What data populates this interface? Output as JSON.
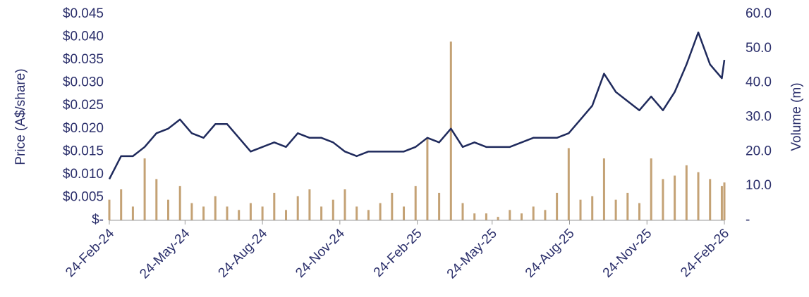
{
  "chart_data": {
    "type": "line-bar",
    "ylabel": "Price (A$/share)",
    "y2label": "Volume (m)",
    "x": [
      "2024-02-24",
      "2024-03-09",
      "2024-03-23",
      "2024-04-06",
      "2024-04-20",
      "2024-05-04",
      "2024-05-18",
      "2024-06-01",
      "2024-06-15",
      "2024-06-29",
      "2024-07-13",
      "2024-07-27",
      "2024-08-10",
      "2024-08-24",
      "2024-09-07",
      "2024-09-21",
      "2024-10-05",
      "2024-10-19",
      "2024-11-02",
      "2024-11-16",
      "2024-11-30",
      "2024-12-14",
      "2024-12-28",
      "2025-01-11",
      "2025-01-25",
      "2025-02-08",
      "2025-02-22",
      "2025-03-08",
      "2025-03-22",
      "2025-04-05",
      "2025-04-19",
      "2025-05-03",
      "2025-05-17",
      "2025-05-31",
      "2025-06-14",
      "2025-06-28",
      "2025-07-12",
      "2025-07-26",
      "2025-08-09",
      "2025-08-23",
      "2025-09-06",
      "2025-09-20",
      "2025-10-04",
      "2025-10-18",
      "2025-11-01",
      "2025-11-15",
      "2025-11-29",
      "2025-12-13",
      "2025-12-27",
      "2026-01-10",
      "2026-01-24",
      "2026-02-07",
      "2026-02-21",
      "2026-02-24"
    ],
    "series": [
      {
        "name": "Price",
        "color": "#1f2a5c",
        "axis": "y",
        "values": [
          0.009,
          0.014,
          0.014,
          0.016,
          0.019,
          0.02,
          0.022,
          0.019,
          0.018,
          0.021,
          0.021,
          0.018,
          0.015,
          0.016,
          0.017,
          0.016,
          0.019,
          0.018,
          0.018,
          0.017,
          0.015,
          0.014,
          0.015,
          0.015,
          0.015,
          0.015,
          0.016,
          0.018,
          0.017,
          0.02,
          0.016,
          0.017,
          0.016,
          0.016,
          0.016,
          0.017,
          0.018,
          0.018,
          0.018,
          0.019,
          0.022,
          0.025,
          0.032,
          0.028,
          0.026,
          0.024,
          0.027,
          0.024,
          0.028,
          0.034,
          0.041,
          0.034,
          0.031,
          0.035
        ]
      },
      {
        "name": "Volume",
        "color": "#c4a275",
        "axis": "y2",
        "values": [
          6,
          9,
          4,
          18,
          12,
          6,
          10,
          5,
          4,
          7,
          4,
          3,
          5,
          4,
          8,
          3,
          7,
          9,
          4,
          6,
          9,
          4,
          3,
          5,
          8,
          4,
          10,
          24,
          8,
          52,
          5,
          2,
          2,
          1,
          3,
          2,
          4,
          3,
          8,
          21,
          6,
          7,
          18,
          6,
          8,
          5,
          18,
          12,
          13,
          16,
          14,
          12,
          10,
          11
        ]
      }
    ],
    "xlim": [
      "2024-02-24",
      "2026-02-24"
    ],
    "xticks": [
      {
        "value": "2024-02-24",
        "label": "24-Feb-24"
      },
      {
        "value": "2024-05-24",
        "label": "24-May-24"
      },
      {
        "value": "2024-08-24",
        "label": "24-Aug-24"
      },
      {
        "value": "2024-11-24",
        "label": "24-Nov-24"
      },
      {
        "value": "2025-02-24",
        "label": "24-Feb-25"
      },
      {
        "value": "2025-05-24",
        "label": "24-May-25"
      },
      {
        "value": "2025-08-24",
        "label": "24-Aug-25"
      },
      {
        "value": "2025-11-24",
        "label": "24-Nov-25"
      },
      {
        "value": "2026-02-24",
        "label": "24-Feb-26"
      }
    ],
    "ylim": [
      0,
      0.045
    ],
    "yticks": [
      {
        "value": 0,
        "label": "$-"
      },
      {
        "value": 0.005,
        "label": "$0.005"
      },
      {
        "value": 0.01,
        "label": "$0.010"
      },
      {
        "value": 0.015,
        "label": "$0.015"
      },
      {
        "value": 0.02,
        "label": "$0.020"
      },
      {
        "value": 0.025,
        "label": "$0.025"
      },
      {
        "value": 0.03,
        "label": "$0.030"
      },
      {
        "value": 0.035,
        "label": "$0.035"
      },
      {
        "value": 0.04,
        "label": "$0.040"
      },
      {
        "value": 0.045,
        "label": "$0.045"
      }
    ],
    "y2lim": [
      0,
      60
    ],
    "y2ticks": [
      {
        "value": 0,
        "label": "-"
      },
      {
        "value": 10,
        "label": "10.0"
      },
      {
        "value": 20,
        "label": "20.0"
      },
      {
        "value": 30,
        "label": "30.0"
      },
      {
        "value": 40,
        "label": "40.0"
      },
      {
        "value": 50,
        "label": "50.0"
      },
      {
        "value": 60,
        "label": "60.0"
      }
    ]
  }
}
